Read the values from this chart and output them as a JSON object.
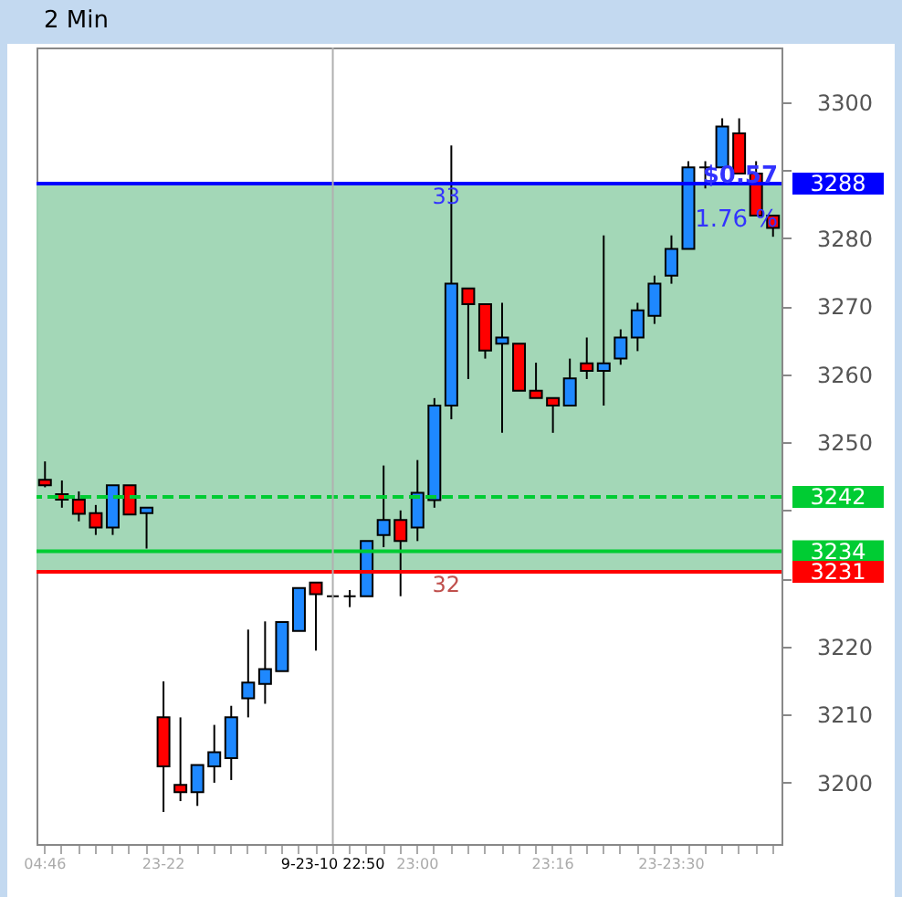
{
  "chart_data": {
    "type": "candlestick",
    "title": "2 Min",
    "categories": [
      "04:46",
      null,
      null,
      null,
      null,
      null,
      null,
      "23-22",
      null,
      null,
      null,
      null,
      null,
      null,
      null,
      null,
      null,
      "9-23-10 22:50",
      null,
      null,
      null,
      null,
      "23:00",
      null,
      null,
      null,
      null,
      null,
      null,
      null,
      "23:16",
      null,
      null,
      null,
      null,
      null,
      null,
      "23-23:30",
      null,
      null,
      null,
      null,
      null,
      null
    ],
    "ohlc": [
      [
        3244.5,
        3247.2,
        3243.4,
        3243.7
      ],
      [
        3242.4,
        3244.4,
        3240.4,
        3241.6
      ],
      [
        3241.6,
        3242.8,
        3238.4,
        3239.5
      ],
      [
        3239.6,
        3240.8,
        3236.4,
        3237.5
      ],
      [
        3237.5,
        3243.7,
        3236.4,
        3243.7
      ],
      [
        3243.7,
        3243.7,
        3239.4,
        3239.4
      ],
      [
        3239.6,
        3240.4,
        3234.4,
        3240.4
      ],
      [
        3209.6,
        3214.9,
        3195.7,
        3202.4
      ],
      [
        3199.7,
        3209.6,
        3197.3,
        3198.6
      ],
      [
        3198.6,
        3202.6,
        3196.6,
        3202.6
      ],
      [
        3202.4,
        3208.5,
        3200,
        3204.5
      ],
      [
        3203.6,
        3211.3,
        3200.4,
        3209.6
      ],
      [
        3212.4,
        3222.5,
        3209.6,
        3214.7
      ],
      [
        3214.5,
        3223.7,
        3211.6,
        3216.7
      ],
      [
        3216.4,
        3223.6,
        3216.4,
        3223.6
      ],
      [
        3222.3,
        3228.6,
        3222.3,
        3228.6
      ],
      [
        3229.4,
        3229.4,
        3219.4,
        3227.7
      ],
      [
        3227.4,
        3227.6,
        3227.2,
        3227.4
      ],
      [
        3227.4,
        3228.3,
        3225.8,
        3227.4
      ],
      [
        3227.4,
        3235.5,
        3227.4,
        3235.5
      ],
      [
        3236.4,
        3246.6,
        3234.6,
        3238.6
      ],
      [
        3238.6,
        3240,
        3227.4,
        3235.5
      ],
      [
        3237.5,
        3247.4,
        3235.5,
        3242.6
      ],
      [
        3241.5,
        3256.5,
        3240.4,
        3255.4
      ],
      [
        3255.4,
        3293.6,
        3253.4,
        3273.3
      ],
      [
        3272.6,
        3272.6,
        3259.3,
        3270.3
      ],
      [
        3270.3,
        3270.3,
        3262.3,
        3263.5
      ],
      [
        3264.5,
        3270.5,
        3251.4,
        3265.4
      ],
      [
        3264.5,
        3264.5,
        3257.6,
        3257.6
      ],
      [
        3257.6,
        3261.7,
        3256.5,
        3256.5
      ],
      [
        3256.5,
        3256.5,
        3251.4,
        3255.4
      ],
      [
        3255.4,
        3262.3,
        3255.4,
        3259.4
      ],
      [
        3261.6,
        3265.4,
        3259.3,
        3260.5
      ],
      [
        3260.5,
        3280.4,
        3255.4,
        3261.6
      ],
      [
        3262.3,
        3266.6,
        3261.4,
        3265.4
      ],
      [
        3265.4,
        3270.5,
        3263.4,
        3269.4
      ],
      [
        3268.6,
        3274.5,
        3267.4,
        3273.3
      ],
      [
        3274.5,
        3280.4,
        3273.3,
        3278.4
      ],
      [
        3278.4,
        3291.3,
        3278.4,
        3290.4
      ],
      [
        3290.4,
        3291.3,
        3287.3,
        3290.4
      ],
      [
        3290.4,
        3297.6,
        3290.4,
        3296.4
      ],
      [
        3295.4,
        3297.6,
        3289.5,
        3289.5
      ],
      [
        3289.5,
        3291.3,
        3283.3,
        3283.3
      ],
      [
        3283.3,
        3283.3,
        3280.2,
        3281.5
      ]
    ],
    "colors": [
      "#ff0000",
      "#ff0000",
      "#ff0000",
      "#ff0000",
      "#1e88ff",
      "#ff0000",
      "#1e88ff",
      "#ff0000",
      "#ff0000",
      "#1e88ff",
      "#1e88ff",
      "#1e88ff",
      "#1e88ff",
      "#1e88ff",
      "#1e88ff",
      "#1e88ff",
      "#ff0000",
      "#000000",
      "#000000",
      "#1e88ff",
      "#1e88ff",
      "#ff0000",
      "#1e88ff",
      "#1e88ff",
      "#1e88ff",
      "#ff0000",
      "#ff0000",
      "#1e88ff",
      "#ff0000",
      "#ff0000",
      "#ff0000",
      "#1e88ff",
      "#ff0000",
      "#1e88ff",
      "#1e88ff",
      "#1e88ff",
      "#1e88ff",
      "#1e88ff",
      "#1e88ff",
      "#000000",
      "#1e88ff",
      "#ff0000",
      "#ff0000",
      "#ff0000"
    ],
    "ylim": [
      3191,
      3308
    ],
    "yticks": [
      3200,
      3210,
      3220,
      {
        "value": 3230,
        "label": null
      },
      {
        "value": 3240,
        "label": null
      },
      3250,
      3260,
      3270,
      3280,
      {
        "value": 3290,
        "label": null
      },
      3300
    ],
    "bands": [
      {
        "axis": "y",
        "from": 3231,
        "to": 3288,
        "color": "#9ed5b3"
      }
    ],
    "ref_lines": [
      {
        "axis": "y",
        "value": 3288,
        "label": "3288",
        "color": "#0000ff"
      },
      {
        "axis": "y",
        "value": 3242,
        "label": "3242",
        "color": "#00cc33",
        "line_style": "dashed"
      },
      {
        "axis": "y",
        "value": 3234,
        "label": "3234",
        "color": "#00cc33"
      },
      {
        "axis": "y",
        "value": 3231,
        "label": "3231",
        "color": "#ff0000"
      },
      {
        "axis": "x",
        "value": "9-23-10 22:50",
        "color": "#b0b0b0"
      }
    ],
    "annotations": [
      {
        "text": "33",
        "y": 3288
      },
      {
        "text": "32",
        "y": 3231
      },
      "$0.57",
      "1.76 %"
    ]
  }
}
